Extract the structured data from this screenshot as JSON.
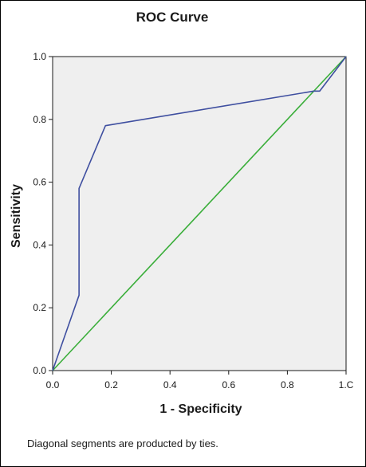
{
  "chart_data": {
    "type": "line",
    "title": "ROC Curve",
    "xlabel": "1 - Specificity",
    "ylabel": "Sensitivity",
    "footnote": "Diagonal segments are producted by ties.",
    "xlim": [
      0.0,
      1.0
    ],
    "ylim": [
      0.0,
      1.0
    ],
    "x_tick_labels": [
      "0.0",
      "0.2",
      "0.4",
      "0.6",
      "0.8",
      "1.C"
    ],
    "y_tick_labels": [
      "0.0",
      "0.2",
      "0.4",
      "0.6",
      "0.8",
      "1.0"
    ],
    "grid": false,
    "series": [
      {
        "kind": "roc",
        "color": "#3f4fa0",
        "x": [
          0.0,
          0.09,
          0.09,
          0.18,
          0.89,
          0.91,
          1.0
        ],
        "y": [
          0.0,
          0.24,
          0.58,
          0.78,
          0.89,
          0.89,
          1.0
        ]
      },
      {
        "kind": "reference",
        "color": "#3aae3a",
        "x": [
          0.0,
          1.0
        ],
        "y": [
          0.0,
          1.0
        ]
      }
    ],
    "plot_background": "#efefef"
  }
}
